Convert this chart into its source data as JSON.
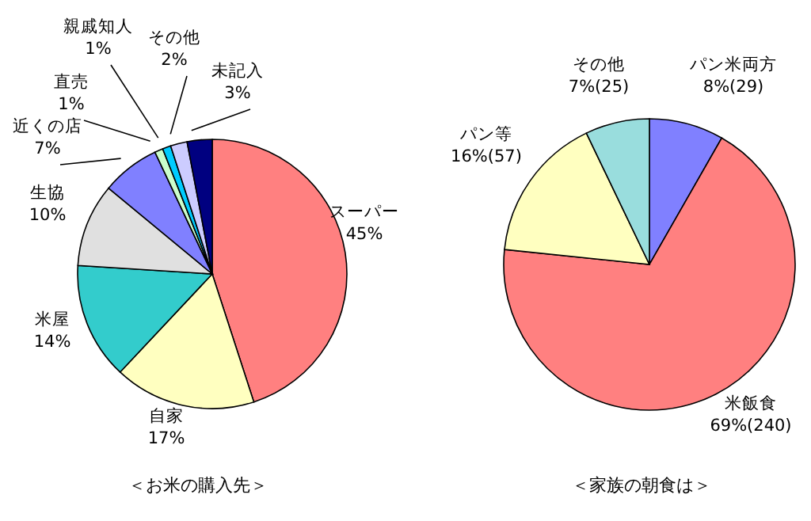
{
  "chart_data": [
    {
      "type": "pie",
      "title": "＜お米の購入先＞",
      "categories": [
        "スーパー",
        "自家",
        "米屋",
        "生協",
        "近くの店",
        "直売",
        "親戚知人",
        "その他",
        "未記入"
      ],
      "values": [
        45,
        17,
        14,
        10,
        7,
        1,
        1,
        2,
        3
      ],
      "value_labels": [
        "45%",
        "17%",
        "14%",
        "10%",
        "7%",
        "1%",
        "1%",
        "2%",
        "3%"
      ],
      "colors": [
        "#ff8080",
        "#ffffc0",
        "#33cccc",
        "#e0e0e0",
        "#8080ff",
        "#ccffcc",
        "#00ccff",
        "#ccccff",
        "#000080"
      ],
      "legend": false
    },
    {
      "type": "pie",
      "title": "＜家族の朝食は＞",
      "categories": [
        "パン米両方",
        "米飯食",
        "パン等",
        "その他"
      ],
      "values": [
        29,
        240,
        57,
        25
      ],
      "value_labels": [
        "8%(29)",
        "69%(240)",
        "16%(57)",
        "7%(25)"
      ],
      "colors": [
        "#8080ff",
        "#ff8080",
        "#ffffc0",
        "#99dddd"
      ],
      "legend": false
    }
  ]
}
